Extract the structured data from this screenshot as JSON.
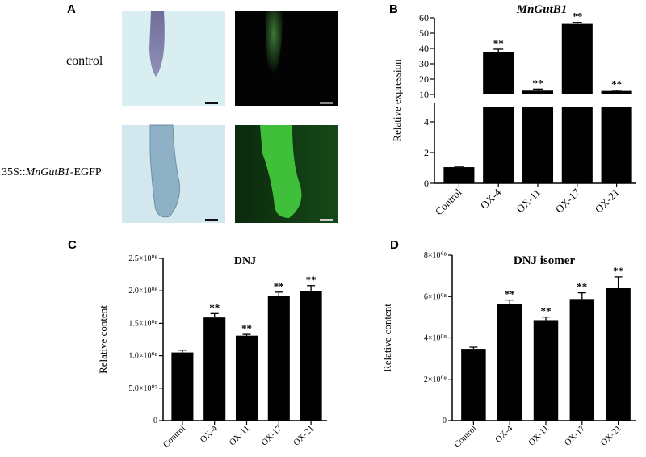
{
  "panels": {
    "A": {
      "letter": "A",
      "row_labels": {
        "control": "control",
        "construct_prefix": "35S::",
        "construct_gene": "MnGutB1",
        "construct_suffix": "-EGFP"
      },
      "colors": {
        "brightfield_bg": "#d6ebee",
        "fluor_bg": "#050505",
        "fluor_green": "#3fb83a"
      }
    },
    "B": {
      "letter": "B"
    },
    "C": {
      "letter": "C"
    },
    "D": {
      "letter": "D"
    }
  },
  "chart_data": [
    {
      "id": "B",
      "type": "bar",
      "title": "MnGutB1",
      "title_italic": true,
      "ylabel": "Relative expression",
      "categories": [
        "Control",
        "OX-4",
        "OX-11",
        "OX-17",
        "OX-21"
      ],
      "values": [
        1.05,
        37.5,
        12.5,
        56.0,
        12.3
      ],
      "errors": [
        0.05,
        2.0,
        1.0,
        1.0,
        0.5
      ],
      "significance": [
        "",
        "**",
        "**",
        "**",
        "**"
      ],
      "broken_axis": {
        "lower_range": [
          0,
          5
        ],
        "upper_range": [
          10,
          60
        ]
      },
      "yticks_lower": [
        "0",
        "2",
        "4"
      ],
      "yticks_upper": [
        "10",
        "20",
        "30",
        "40",
        "50",
        "60"
      ],
      "bar_color": "#000000"
    },
    {
      "id": "C",
      "type": "bar",
      "title": "DNJ",
      "ylabel": "Relative content",
      "categories": [
        "Control",
        "OX-4",
        "OX-11",
        "OX-17",
        "OX-21"
      ],
      "values": [
        105000000,
        159000000,
        131000000,
        192000000,
        200000000
      ],
      "errors": [
        3500000,
        6000000,
        2000000,
        6000000,
        8000000
      ],
      "significance": [
        "",
        "**",
        "**",
        "**",
        "**"
      ],
      "ylim": [
        0,
        250000000
      ],
      "yticks": [
        {
          "v": 0,
          "label": "0"
        },
        {
          "v": 50000000,
          "label": "5.0×10⁰⁷"
        },
        {
          "v": 100000000,
          "label": "1.0×10⁰⁸"
        },
        {
          "v": 150000000,
          "label": "1.5×10⁰⁸"
        },
        {
          "v": 200000000,
          "label": "2.0×10⁰⁸"
        },
        {
          "v": 250000000,
          "label": "2.5×10⁰⁸"
        }
      ],
      "bar_color": "#000000"
    },
    {
      "id": "D",
      "type": "bar",
      "title": "DNJ isomer",
      "ylabel": "Relative content",
      "categories": [
        "Control",
        "OX-4",
        "OX-11",
        "OX-17",
        "OX-21"
      ],
      "values": [
        347000000,
        563000000,
        486000000,
        588000000,
        640000000
      ],
      "errors": [
        8000000,
        20000000,
        15000000,
        30000000,
        55000000
      ],
      "significance": [
        "",
        "**",
        "**",
        "**",
        "**"
      ],
      "ylim": [
        0,
        800000000
      ],
      "yticks": [
        {
          "v": 0,
          "label": "0"
        },
        {
          "v": 200000000,
          "label": "2×10⁰⁸"
        },
        {
          "v": 400000000,
          "label": "4×10⁰⁸"
        },
        {
          "v": 600000000,
          "label": "6×10⁰⁸"
        },
        {
          "v": 800000000,
          "label": "8×10⁰⁸"
        }
      ],
      "bar_color": "#000000"
    }
  ]
}
